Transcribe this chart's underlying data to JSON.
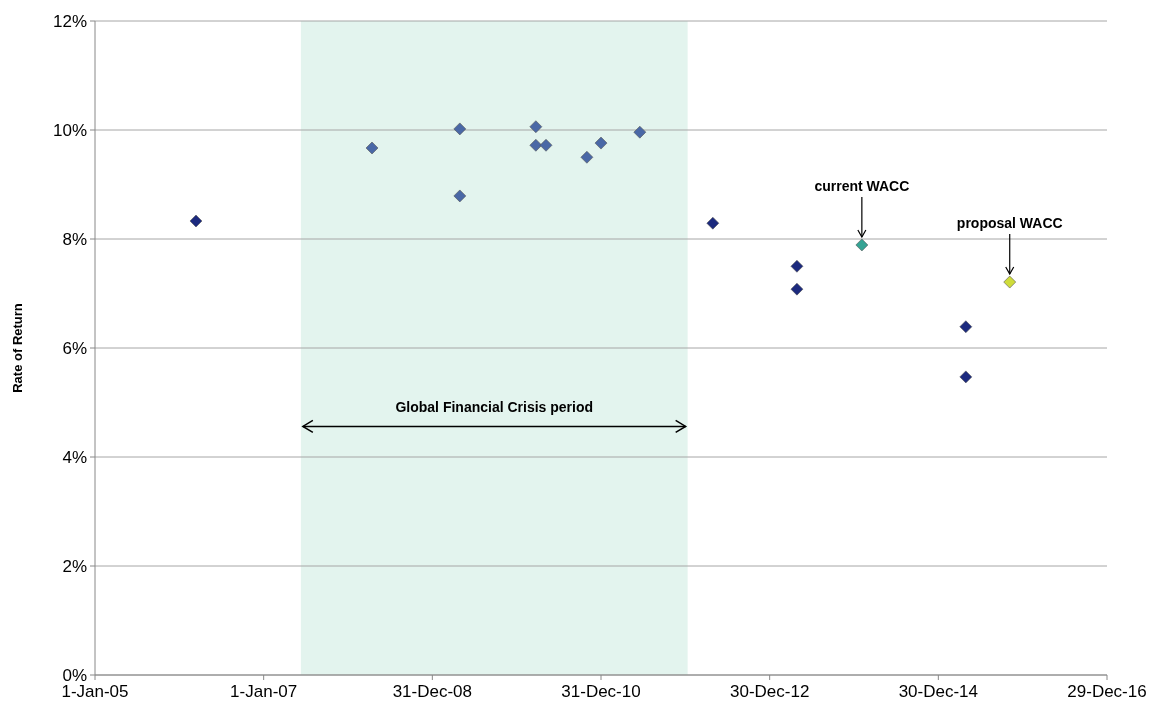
{
  "chart_data": {
    "type": "scatter",
    "ylabel": "Rate of Return",
    "x": [
      "2006-03-14",
      "2008-04-14",
      "2009-04-29",
      "2009-04-29",
      "2010-03-24",
      "2010-03-24",
      "2010-05-07",
      "2010-10-31",
      "2010-12-31",
      "2011-06-17",
      "2012-04-28",
      "2013-04-27",
      "2013-04-27",
      "2014-02-02",
      "2015-04-28",
      "2015-04-28",
      "2015-11-04"
    ],
    "values": [
      8.33,
      9.67,
      10.02,
      8.79,
      10.06,
      9.72,
      9.72,
      9.5,
      9.76,
      9.96,
      8.29,
      7.5,
      7.08,
      7.89,
      6.39,
      5.47,
      7.21
    ],
    "colors": [
      "#1c2a7e",
      "#4a68a6",
      "#4a68a6",
      "#4a68a6",
      "#4a68a6",
      "#4a68a6",
      "#4a68a6",
      "#4a68a6",
      "#4a68a6",
      "#4a68a6",
      "#1c2a7e",
      "#1c2a7e",
      "#1c2a7e",
      "#35a394",
      "#1c2a7e",
      "#1c2a7e",
      "#cfdc3a"
    ],
    "marker": "diamond",
    "xlim": [
      "2005-01-01",
      "2016-12-29"
    ],
    "xticks": [
      {
        "value": "2005-01-01",
        "label": "1-Jan-05"
      },
      {
        "value": "2007-01-01",
        "label": "1-Jan-07"
      },
      {
        "value": "2008-12-31",
        "label": "31-Dec-08"
      },
      {
        "value": "2010-12-31",
        "label": "31-Dec-10"
      },
      {
        "value": "2012-12-30",
        "label": "30-Dec-12"
      },
      {
        "value": "2014-12-30",
        "label": "30-Dec-14"
      },
      {
        "value": "2016-12-29",
        "label": "29-Dec-16"
      }
    ],
    "ylim": [
      0,
      12
    ],
    "yticks": [
      {
        "value": 0,
        "label": "0%"
      },
      {
        "value": 2,
        "label": "2%"
      },
      {
        "value": 4,
        "label": "4%"
      },
      {
        "value": 6,
        "label": "6%"
      },
      {
        "value": 8,
        "label": "8%"
      },
      {
        "value": 10,
        "label": "10%"
      },
      {
        "value": 12,
        "label": "12%"
      }
    ],
    "grid": "y",
    "bands": [
      {
        "axis": "x",
        "from": "2007-06-11",
        "to": "2012-01-10",
        "label": "Global Financial Crisis period",
        "color": "#e3f4ee"
      }
    ],
    "annotations": [
      {
        "text": "current WACC",
        "x": "2014-02-02",
        "y": 7.89
      },
      {
        "text": "proposal WACC",
        "x": "2015-11-04",
        "y": 7.21
      }
    ]
  }
}
